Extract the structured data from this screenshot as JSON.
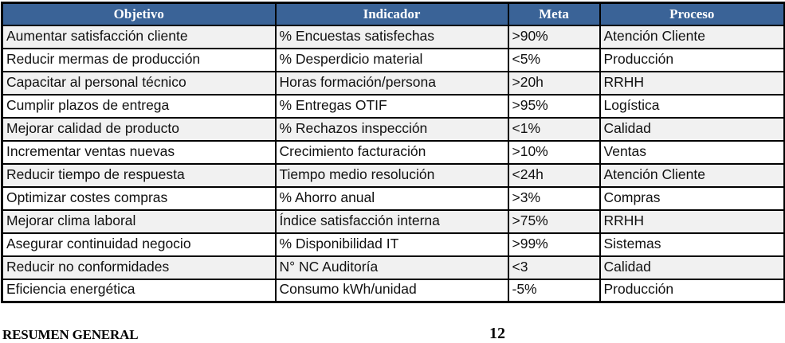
{
  "table": {
    "columns": [
      {
        "label": "Objetivo"
      },
      {
        "label": "Indicador"
      },
      {
        "label": "Meta"
      },
      {
        "label": "Proceso"
      }
    ],
    "rows": [
      {
        "objetivo": "Aumentar satisfacción cliente",
        "indicador": "% Encuestas satisfechas",
        "meta": ">90%",
        "proceso": "Atención Cliente"
      },
      {
        "objetivo": "Reducir mermas de producción",
        "indicador": "% Desperdicio material",
        "meta": "<5%",
        "proceso": "Producción"
      },
      {
        "objetivo": "Capacitar al personal técnico",
        "indicador": "Horas formación/persona",
        "meta": ">20h",
        "proceso": "RRHH"
      },
      {
        "objetivo": "Cumplir plazos de entrega",
        "indicador": "% Entregas OTIF",
        "meta": ">95%",
        "proceso": "Logística"
      },
      {
        "objetivo": "Mejorar calidad de producto",
        "indicador": "% Rechazos inspección",
        "meta": "<1%",
        "proceso": "Calidad"
      },
      {
        "objetivo": "Incrementar ventas nuevas",
        "indicador": "Crecimiento facturación",
        "meta": ">10%",
        "proceso": "Ventas"
      },
      {
        "objetivo": "Reducir tiempo de respuesta",
        "indicador": "Tiempo medio resolución",
        "meta": "<24h",
        "proceso": "Atención Cliente"
      },
      {
        "objetivo": "Optimizar costes compras",
        "indicador": "% Ahorro anual",
        "meta": ">3%",
        "proceso": "Compras"
      },
      {
        "objetivo": "Mejorar clima laboral",
        "indicador": "Índice satisfacción interna",
        "meta": ">75%",
        "proceso": "RRHH"
      },
      {
        "objetivo": "Asegurar continuidad negocio",
        "indicador": "% Disponibilidad IT",
        "meta": ">99%",
        "proceso": "Sistemas"
      },
      {
        "objetivo": "Reducir no conformidades",
        "indicador": "N° NC Auditoría",
        "meta": "<3",
        "proceso": "Calidad"
      },
      {
        "objetivo": "Eficiencia energética",
        "indicador": "Consumo kWh/unidad",
        "meta": "-5%",
        "proceso": "Producción"
      }
    ]
  },
  "footer": {
    "summary_label": "RESUMEN GENERAL",
    "page_number": "12"
  },
  "colors": {
    "header_bg": "#3a6397",
    "header_text": "#ffffff",
    "row_alt_bg": "#f1f1f1",
    "row_bg": "#ffffff",
    "border": "#000000"
  }
}
